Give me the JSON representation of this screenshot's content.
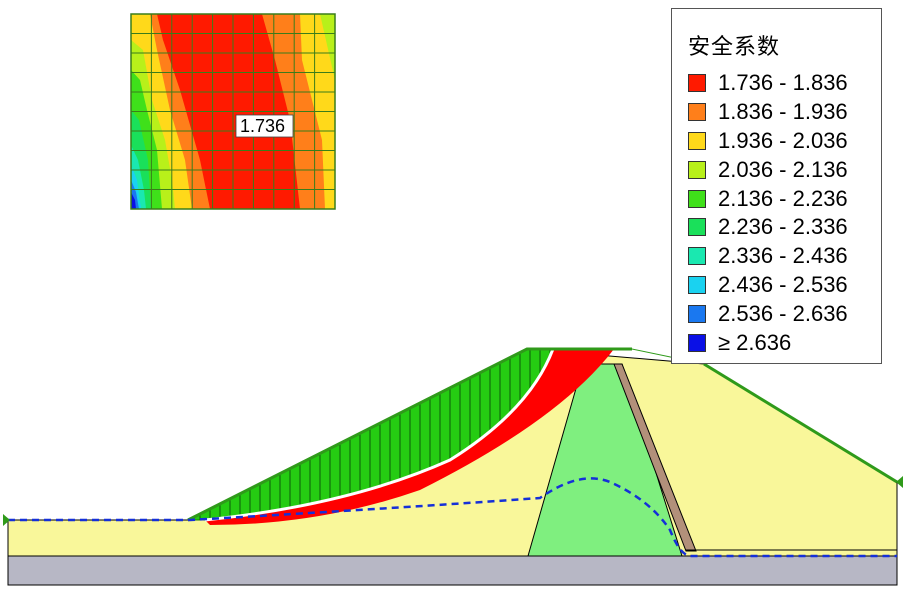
{
  "inset": {
    "min_label": "1.736"
  },
  "legend": {
    "title": "安全系数",
    "items": [
      {
        "label": "1.736 - 1.836",
        "color": "#ff1a00"
      },
      {
        "label": "1.836 - 1.936",
        "color": "#ff7f1a"
      },
      {
        "label": "1.936 - 2.036",
        "color": "#ffd91a"
      },
      {
        "label": "2.036 - 2.136",
        "color": "#b8f01a"
      },
      {
        "label": "2.136 - 2.236",
        "color": "#3fe01a"
      },
      {
        "label": "2.236 - 2.336",
        "color": "#1ae05a"
      },
      {
        "label": "2.336 - 2.436",
        "color": "#1ae8b0"
      },
      {
        "label": "2.436 - 2.536",
        "color": "#1ad2f0"
      },
      {
        "label": "2.536 - 2.636",
        "color": "#1a78f0"
      },
      {
        "label": "≥ 2.636",
        "color": "#0a10e6"
      }
    ]
  },
  "section": {
    "colors": {
      "fill_material": "#f9f79a",
      "core_material": "#7fef7f",
      "foundation": "#b7b7c5",
      "filter": "#b2907a",
      "slip_zone": "#ff0000",
      "sliding_mass": "#25cc12",
      "water_table": "#1530d8",
      "grid": "#3a7d1a"
    }
  }
}
